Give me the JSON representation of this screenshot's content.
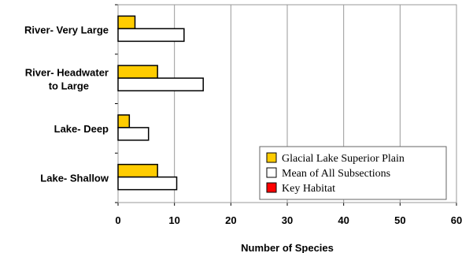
{
  "chart_data": {
    "type": "bar",
    "orientation": "horizontal",
    "categories": [
      "River- Very Large",
      "River- Headwater to Large",
      "Lake- Deep",
      "Lake- Shallow"
    ],
    "category_label_lines": [
      [
        "River- Very Large"
      ],
      [
        "River- Headwater",
        "to Large"
      ],
      [
        "Lake- Deep"
      ],
      [
        "Lake- Shallow"
      ]
    ],
    "series": [
      {
        "name": "Glacial Lake Superior Plain",
        "values": [
          3,
          7,
          2,
          7
        ],
        "color": "#FFCC00"
      },
      {
        "name": "Mean of All Subsections",
        "values": [
          11.7,
          15.1,
          5.4,
          10.4
        ],
        "color": "#FFFFFF"
      },
      {
        "name": "Key Habitat",
        "values": [
          0,
          0,
          0,
          0
        ],
        "color": "#FF0000"
      }
    ],
    "xlabel": "Number of Species",
    "ylabel": "",
    "xlim": [
      0,
      60
    ],
    "xticks": [
      "0",
      "10",
      "20",
      "30",
      "40",
      "50",
      "60"
    ],
    "grid": true,
    "legend_position": "bottom-right"
  }
}
